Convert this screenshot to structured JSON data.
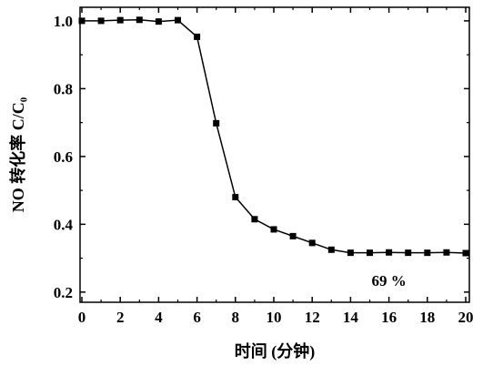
{
  "chart_data": {
    "type": "line",
    "xlabel": "时间 (分钟)",
    "ylabel": "NO 转化率 C/C₀",
    "xlim": [
      0,
      20
    ],
    "ylim": [
      0.2,
      1.0
    ],
    "xticks": [
      0,
      2,
      4,
      6,
      8,
      10,
      12,
      14,
      16,
      18,
      20
    ],
    "yticks": [
      0.2,
      0.4,
      0.6,
      0.8,
      1.0
    ],
    "xtick_labels": [
      "0",
      "2",
      "4",
      "6",
      "8",
      "10",
      "12",
      "14",
      "16",
      "18",
      "20"
    ],
    "ytick_labels": [
      "0.2",
      "0.4",
      "0.6",
      "0.8",
      "1.0"
    ],
    "grid": false,
    "marker": "square",
    "line_color": "#000000",
    "annotation": {
      "text": "69 %",
      "x": 16,
      "y": 0.235
    },
    "series": [
      {
        "x": [
          0,
          1,
          2,
          3,
          4,
          5,
          6,
          7,
          8,
          9,
          10,
          11,
          12,
          13,
          14,
          15,
          16,
          17,
          18,
          19,
          20
        ],
        "y": [
          1.0,
          1.0,
          1.002,
          1.003,
          0.998,
          1.002,
          0.953,
          0.698,
          0.48,
          0.415,
          0.385,
          0.365,
          0.345,
          0.325,
          0.316,
          0.316,
          0.317,
          0.316,
          0.316,
          0.317,
          0.315
        ]
      }
    ]
  }
}
